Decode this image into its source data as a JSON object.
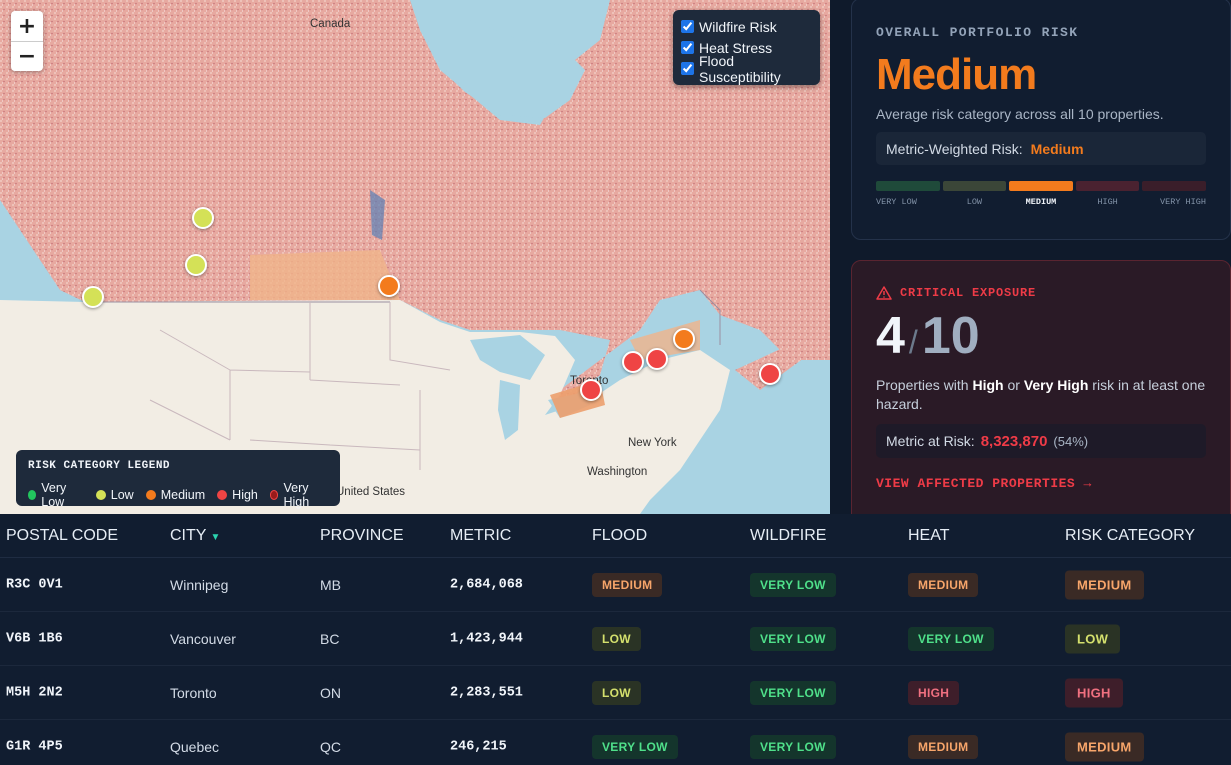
{
  "map": {
    "zoom_in": "+",
    "zoom_out": "−",
    "labels": {
      "canada": "Canada",
      "toronto": "Toronto",
      "new_york": "New York",
      "washington": "Washington",
      "united_states": "United States"
    },
    "layers": [
      {
        "label": "Wildfire Risk",
        "checked": true
      },
      {
        "label": "Heat Stress",
        "checked": true
      },
      {
        "label": "Flood Susceptibility",
        "checked": true
      }
    ],
    "legend": {
      "title": "RISK CATEGORY LEGEND",
      "items": [
        {
          "label": "Very Low",
          "color": "#22c55e"
        },
        {
          "label": "Low",
          "color": "#d4e157"
        },
        {
          "label": "Medium",
          "color": "#f37b1d"
        },
        {
          "label": "High",
          "color": "#ef4444"
        },
        {
          "label": "Very High",
          "color": "#991b1b"
        }
      ]
    }
  },
  "portfolio": {
    "caption": "OVERALL PORTFOLIO RISK",
    "category": "Medium",
    "description": "Average risk category across all 10 properties.",
    "weighted_label": "Metric-Weighted Risk:",
    "weighted_value": "Medium",
    "scale": [
      {
        "label": "VERY LOW",
        "color": "#1f4a3a",
        "active": false
      },
      {
        "label": "LOW",
        "color": "#3b4638",
        "active": false
      },
      {
        "label": "MEDIUM",
        "color": "#f37b1d",
        "active": true
      },
      {
        "label": "HIGH",
        "color": "#4a2230",
        "active": false
      },
      {
        "label": "VERY HIGH",
        "color": "#3a1e2a",
        "active": false
      }
    ]
  },
  "critical": {
    "caption": "CRITICAL EXPOSURE",
    "count": "4",
    "slash": "/",
    "total": "10",
    "desc_pre": "Properties with ",
    "desc_high": "High",
    "desc_or": " or ",
    "desc_vhigh": "Very High",
    "desc_post": " risk in at least one hazard.",
    "metric_label": "Metric at Risk:",
    "metric_value": "8,323,870",
    "metric_pct": "(54%)",
    "link": "VIEW AFFECTED PROPERTIES →"
  },
  "table": {
    "headers": {
      "postal": "POSTAL CODE",
      "city": "CITY",
      "sort": "▼",
      "province": "PROVINCE",
      "metric": "METRIC",
      "flood": "FLOOD",
      "wildfire": "WILDFIRE",
      "heat": "HEAT",
      "risk": "RISK CATEGORY"
    },
    "rows": [
      {
        "postal": "R3C 0V1",
        "city": "Winnipeg",
        "province": "MB",
        "metric": "2,684,068",
        "flood": "MEDIUM",
        "wildfire": "VERY LOW",
        "heat": "MEDIUM",
        "risk": "MEDIUM"
      },
      {
        "postal": "V6B 1B6",
        "city": "Vancouver",
        "province": "BC",
        "metric": "1,423,944",
        "flood": "LOW",
        "wildfire": "VERY LOW",
        "heat": "VERY LOW",
        "risk": "LOW"
      },
      {
        "postal": "M5H 2N2",
        "city": "Toronto",
        "province": "ON",
        "metric": "2,283,551",
        "flood": "LOW",
        "wildfire": "VERY LOW",
        "heat": "HIGH",
        "risk": "HIGH"
      },
      {
        "postal": "G1R 4P5",
        "city": "Quebec",
        "province": "QC",
        "metric": "246,215",
        "flood": "VERY LOW",
        "wildfire": "VERY LOW",
        "heat": "MEDIUM",
        "risk": "MEDIUM"
      }
    ]
  }
}
